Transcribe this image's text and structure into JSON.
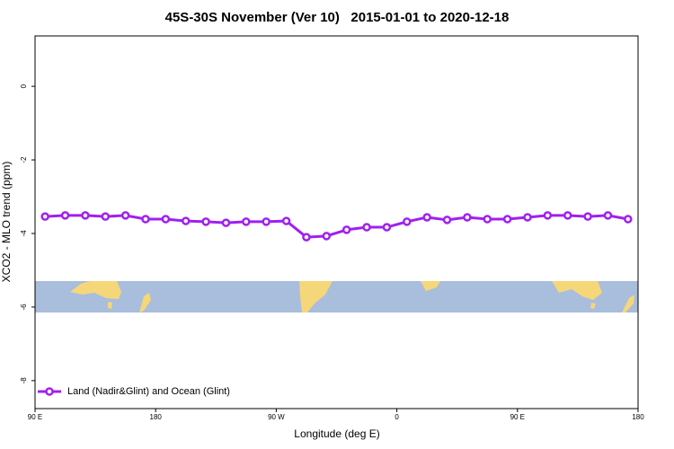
{
  "chart_data": {
    "type": "line",
    "title": "45S-30S November (Ver 10)   2015-01-01 to 2020-12-18",
    "x_label": "Longitude (deg E)",
    "y_label": "XCO2 - MLO trend (ppm)",
    "xlim": [
      90,
      540
    ],
    "ylim": [
      -8.76,
      1.37
    ],
    "xticks": [
      {
        "value": 90,
        "label": "90 E"
      },
      {
        "value": 180,
        "label": "180"
      },
      {
        "value": 270,
        "label": "90 W"
      },
      {
        "value": 360,
        "label": "0"
      },
      {
        "value": 450,
        "label": "90 E"
      },
      {
        "value": 540,
        "label": "180"
      }
    ],
    "yticks": [
      0,
      -2,
      -4,
      -6,
      -8
    ],
    "x": [
      97.5,
      112.5,
      127.5,
      142.5,
      157.5,
      172.5,
      187.5,
      202.5,
      217.5,
      232.5,
      247.5,
      262.5,
      277.5,
      292.5,
      307.5,
      322.5,
      337.5,
      352.5,
      367.5,
      382.5,
      397.5,
      412.5,
      427.5,
      442.5,
      457.5,
      472.5,
      487.5,
      502.5,
      517.5,
      532.5
    ],
    "series": [
      {
        "name": "Land (Nadir&Glint) and Ocean (Glint)",
        "color": "#a020f0",
        "values": [
          -3.54,
          -3.51,
          -3.51,
          -3.54,
          -3.51,
          -3.61,
          -3.61,
          -3.66,
          -3.68,
          -3.71,
          -3.68,
          -3.68,
          -3.66,
          -4.1,
          -4.07,
          -3.9,
          -3.83,
          -3.83,
          -3.68,
          -3.56,
          -3.63,
          -3.56,
          -3.61,
          -3.61,
          -3.56,
          -3.51,
          -3.51,
          -3.54,
          -3.51,
          -3.61
        ]
      }
    ],
    "legend": "bottom-left"
  }
}
